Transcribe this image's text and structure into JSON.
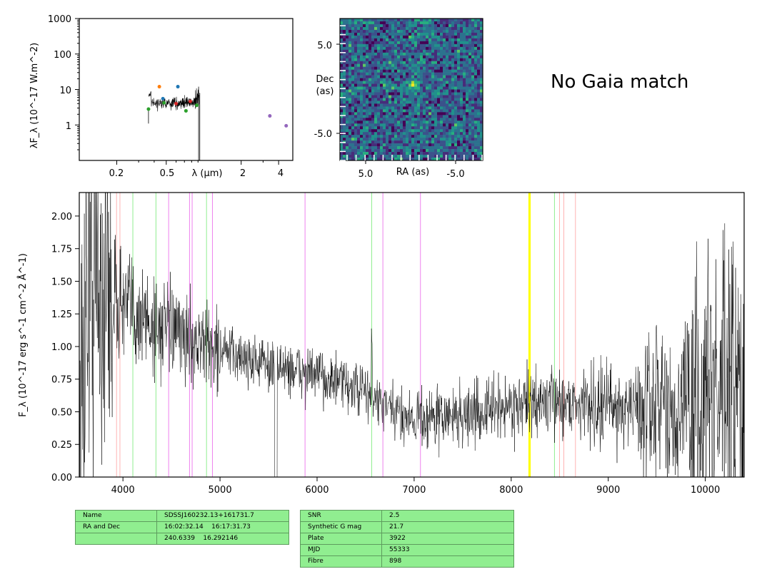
{
  "sed_panel": {
    "ylabel": "λF_λ (10^-17 W.m^-2)",
    "xlabel": "λ (μm)",
    "yticks": [
      "1000",
      "100",
      "10",
      "1"
    ],
    "xticks": [
      "0.2",
      "0.5",
      "2",
      "4"
    ],
    "photometry": [
      {
        "x": 0.36,
        "y": 2.8,
        "color": "#2ca02c"
      },
      {
        "x": 0.47,
        "y": 5.5,
        "color": "#1f77b4"
      },
      {
        "x": 0.62,
        "y": 12.0,
        "color": "#1f77b4"
      },
      {
        "x": 0.44,
        "y": 12.0,
        "color": "#ff7f0e"
      },
      {
        "x": 0.48,
        "y": 4.2,
        "color": "#2ca02c"
      },
      {
        "x": 0.6,
        "y": 4.0,
        "color": "#d62728"
      },
      {
        "x": 0.72,
        "y": 2.5,
        "color": "#2ca02c"
      },
      {
        "x": 0.78,
        "y": 4.6,
        "color": "#d62728"
      },
      {
        "x": 0.88,
        "y": 3.6,
        "color": "#2ca02c"
      },
      {
        "x": 3.4,
        "y": 1.8,
        "color": "#9467bd"
      },
      {
        "x": 4.6,
        "y": 0.95,
        "color": "#9467bd"
      }
    ]
  },
  "image_panel": {
    "ylabel_line1": "Dec",
    "ylabel_line2": "(as)",
    "xlabel": "RA (as)",
    "yticks": [
      "5.0",
      "-5.0"
    ],
    "xticks": [
      "5.0",
      "-5.0"
    ]
  },
  "gaia_text": "No Gaia match",
  "chart_data": {
    "type": "line",
    "xlabel": "",
    "ylabel": "F_λ (10^-17 erg s^-1 cm^-2 Å^-1)",
    "xlim": [
      3550,
      10400
    ],
    "ylim": [
      0.0,
      2.18
    ],
    "xticks": [
      "4000",
      "5000",
      "6000",
      "7000",
      "8000",
      "9000",
      "10000"
    ],
    "yticks": [
      "0.00",
      "0.25",
      "0.50",
      "0.75",
      "1.00",
      "1.25",
      "1.50",
      "1.75",
      "2.00"
    ],
    "spectrum_trend": [
      {
        "x": 3600,
        "y": 1.55
      },
      {
        "x": 3800,
        "y": 1.45
      },
      {
        "x": 4000,
        "y": 1.32
      },
      {
        "x": 4300,
        "y": 1.18
      },
      {
        "x": 4600,
        "y": 1.08
      },
      {
        "x": 5000,
        "y": 0.97
      },
      {
        "x": 5500,
        "y": 0.86
      },
      {
        "x": 6000,
        "y": 0.78
      },
      {
        "x": 6500,
        "y": 0.65
      },
      {
        "x": 6800,
        "y": 0.48
      },
      {
        "x": 7200,
        "y": 0.45
      },
      {
        "x": 7600,
        "y": 0.48
      },
      {
        "x": 8000,
        "y": 0.55
      },
      {
        "x": 8500,
        "y": 0.58
      },
      {
        "x": 9000,
        "y": 0.55
      },
      {
        "x": 9500,
        "y": 0.52
      },
      {
        "x": 10000,
        "y": 0.58
      },
      {
        "x": 10400,
        "y": 0.6
      }
    ],
    "emission_lines_red": [
      3934,
      3969,
      8498,
      8542,
      8662
    ],
    "emission_lines_green": [
      4102,
      4340,
      4861,
      6563,
      8446
    ],
    "emission_lines_violet": [
      4471,
      4686,
      4713,
      4922,
      5876,
      6678,
      7065
    ],
    "emission_line_yellow": [
      8183,
      8195
    ]
  },
  "table_left": {
    "rows": [
      [
        "Name",
        "SDSSJ160232.13+161731.7"
      ],
      [
        "RA and Dec",
        "16:02:32.14    16:17:31.73"
      ],
      [
        "",
        "240.6339    16.292146"
      ]
    ]
  },
  "table_right": {
    "rows": [
      [
        "SNR",
        "2.5"
      ],
      [
        "Synthetic G mag",
        "21.7"
      ],
      [
        "Plate",
        "3922"
      ],
      [
        "MJD",
        "55333"
      ],
      [
        "Fibre",
        "898"
      ]
    ]
  },
  "colors": {
    "red_line": "#ffb3b3",
    "green_line": "#90ee90",
    "violet_line": "#ee82ee",
    "yellow_line": "#ffff00",
    "table_bg": "#90ee90"
  }
}
